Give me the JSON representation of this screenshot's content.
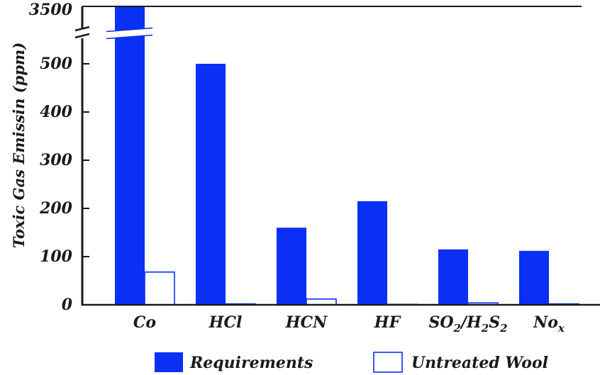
{
  "chart_data": {
    "type": "bar",
    "ylabel": "Toxic Gas Emissin (ppm)",
    "categories": [
      "Co",
      "HCl",
      "HCN",
      "HF",
      "SO2/H2S2",
      "Nox"
    ],
    "category_labels": [
      {
        "parts": [
          {
            "t": "Co"
          }
        ]
      },
      {
        "parts": [
          {
            "t": "HCl"
          }
        ]
      },
      {
        "parts": [
          {
            "t": "HCN"
          }
        ]
      },
      {
        "parts": [
          {
            "t": "HF"
          }
        ]
      },
      {
        "parts": [
          {
            "t": "SO"
          },
          {
            "t": "2",
            "sub": true
          },
          {
            "t": "/H"
          },
          {
            "t": "2",
            "sub": true
          },
          {
            "t": "S"
          },
          {
            "t": "2",
            "sub": true
          }
        ]
      },
      {
        "parts": [
          {
            "t": "No"
          },
          {
            "t": "x",
            "sub": true
          }
        ]
      }
    ],
    "yticks": [
      "0",
      "100",
      "200",
      "300",
      "400",
      "500",
      "3500"
    ],
    "ylim": [
      0,
      580
    ],
    "axis_break": {
      "from": 580,
      "to": 3500
    },
    "series": [
      {
        "name": "Requirements",
        "values": [
          3500,
          500,
          160,
          215,
          115,
          112
        ],
        "style": "filled",
        "color": "#0a2ff5"
      },
      {
        "name": "Untreated Wool",
        "values": [
          68,
          2,
          12,
          1,
          4,
          2
        ],
        "style": "outline",
        "color": "#0a2ff5"
      }
    ],
    "legend_position": "bottom",
    "grid": false
  }
}
